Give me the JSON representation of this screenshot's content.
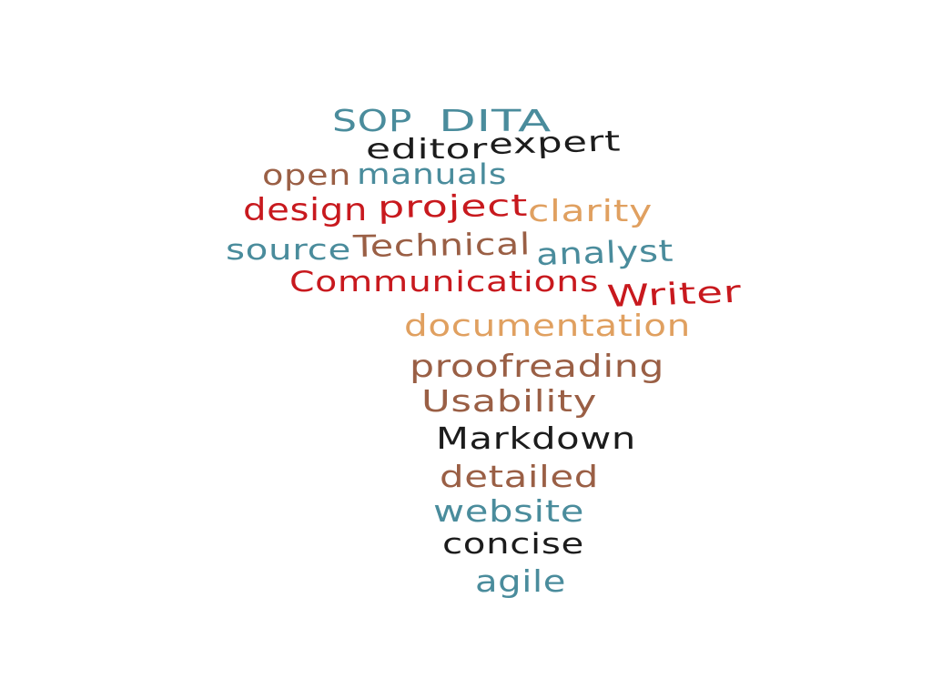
{
  "palette": {
    "teal": "#4a8c9c",
    "black": "#1c1c1c",
    "brown": "#9a5f45",
    "red": "#c8191e",
    "tan": "#e0a060"
  },
  "words": [
    {
      "text": "SOP",
      "color": "teal"
    },
    {
      "text": "DITA",
      "color": "teal"
    },
    {
      "text": "editor",
      "color": "black"
    },
    {
      "text": "expert",
      "color": "black"
    },
    {
      "text": "open",
      "color": "brown"
    },
    {
      "text": "manuals",
      "color": "teal"
    },
    {
      "text": "design",
      "color": "red"
    },
    {
      "text": "project",
      "color": "red"
    },
    {
      "text": "clarity",
      "color": "tan"
    },
    {
      "text": "source",
      "color": "teal"
    },
    {
      "text": "Technical",
      "color": "brown"
    },
    {
      "text": "analyst",
      "color": "teal"
    },
    {
      "text": "Communications",
      "color": "red"
    },
    {
      "text": "Writer",
      "color": "red"
    },
    {
      "text": "documentation",
      "color": "tan"
    },
    {
      "text": "proofreading",
      "color": "brown"
    },
    {
      "text": "Usability",
      "color": "brown"
    },
    {
      "text": "Markdown",
      "color": "black"
    },
    {
      "text": "detailed",
      "color": "brown"
    },
    {
      "text": "website",
      "color": "teal"
    },
    {
      "text": "concise",
      "color": "black"
    },
    {
      "text": "agile",
      "color": "teal"
    }
  ]
}
